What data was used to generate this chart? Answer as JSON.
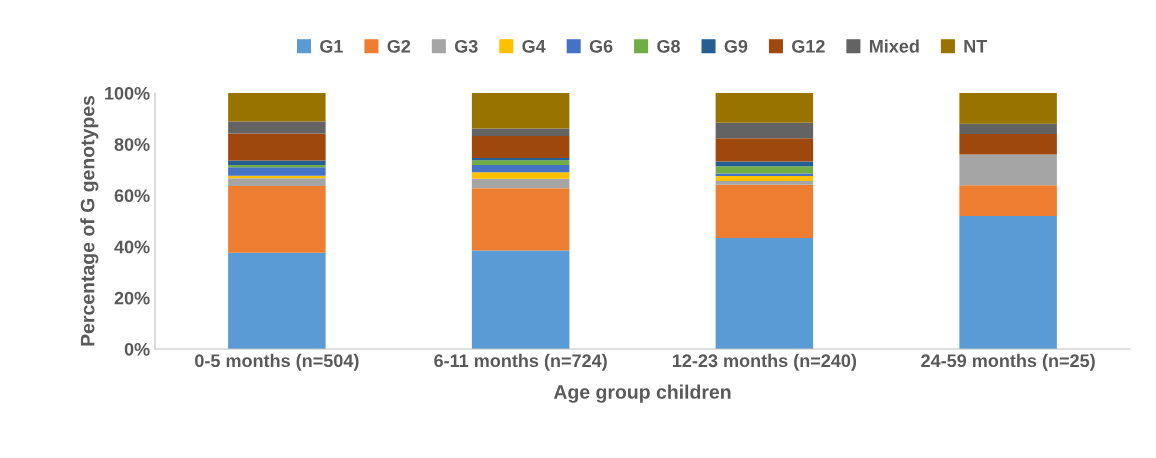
{
  "chart_data": {
    "type": "bar",
    "stacked": true,
    "xlabel": "Age group children",
    "ylabel": "Percentage of G genotypes",
    "categories": [
      "0-5 months (n=504)",
      "6-11 months (n=724)",
      "12-23 months (n=240)",
      "24-59 months (n=25)"
    ],
    "series": [
      {
        "name": "G1",
        "color": "#5b9bd5",
        "values": [
          37.6,
          38.5,
          43.4,
          52
        ]
      },
      {
        "name": "G2",
        "color": "#ed7d31",
        "values": [
          26.1,
          24.3,
          20.8,
          12
        ]
      },
      {
        "name": "G3",
        "color": "#a5a5a5",
        "values": [
          3.0,
          3.7,
          1.4,
          12
        ]
      },
      {
        "name": "G4",
        "color": "#ffc000",
        "values": [
          1.0,
          2.5,
          2.0,
          0
        ]
      },
      {
        "name": "G6",
        "color": "#4472c4",
        "values": [
          3.3,
          2.9,
          1.0,
          0
        ]
      },
      {
        "name": "G8",
        "color": "#70ad47",
        "values": [
          0.9,
          1.8,
          2.8,
          0
        ]
      },
      {
        "name": "G9",
        "color": "#255e91",
        "values": [
          1.7,
          0.9,
          1.8,
          0
        ]
      },
      {
        "name": "G12",
        "color": "#9e480e",
        "values": [
          10.6,
          8.6,
          9.1,
          8
        ]
      },
      {
        "name": "Mixed",
        "color": "#636363",
        "values": [
          4.7,
          2.9,
          6.1,
          4
        ]
      },
      {
        "name": "NT",
        "color": "#997300",
        "values": [
          11.1,
          13.9,
          11.6,
          12
        ]
      }
    ],
    "ylim": [
      0,
      100
    ],
    "yticks": [
      {
        "value": 0,
        "label": "0%"
      },
      {
        "value": 20,
        "label": "20%"
      },
      {
        "value": 40,
        "label": "40%"
      },
      {
        "value": 60,
        "label": "60%"
      },
      {
        "value": 80,
        "label": "80%"
      },
      {
        "value": 100,
        "label": "100%"
      }
    ],
    "grid": false,
    "legend": "top"
  }
}
